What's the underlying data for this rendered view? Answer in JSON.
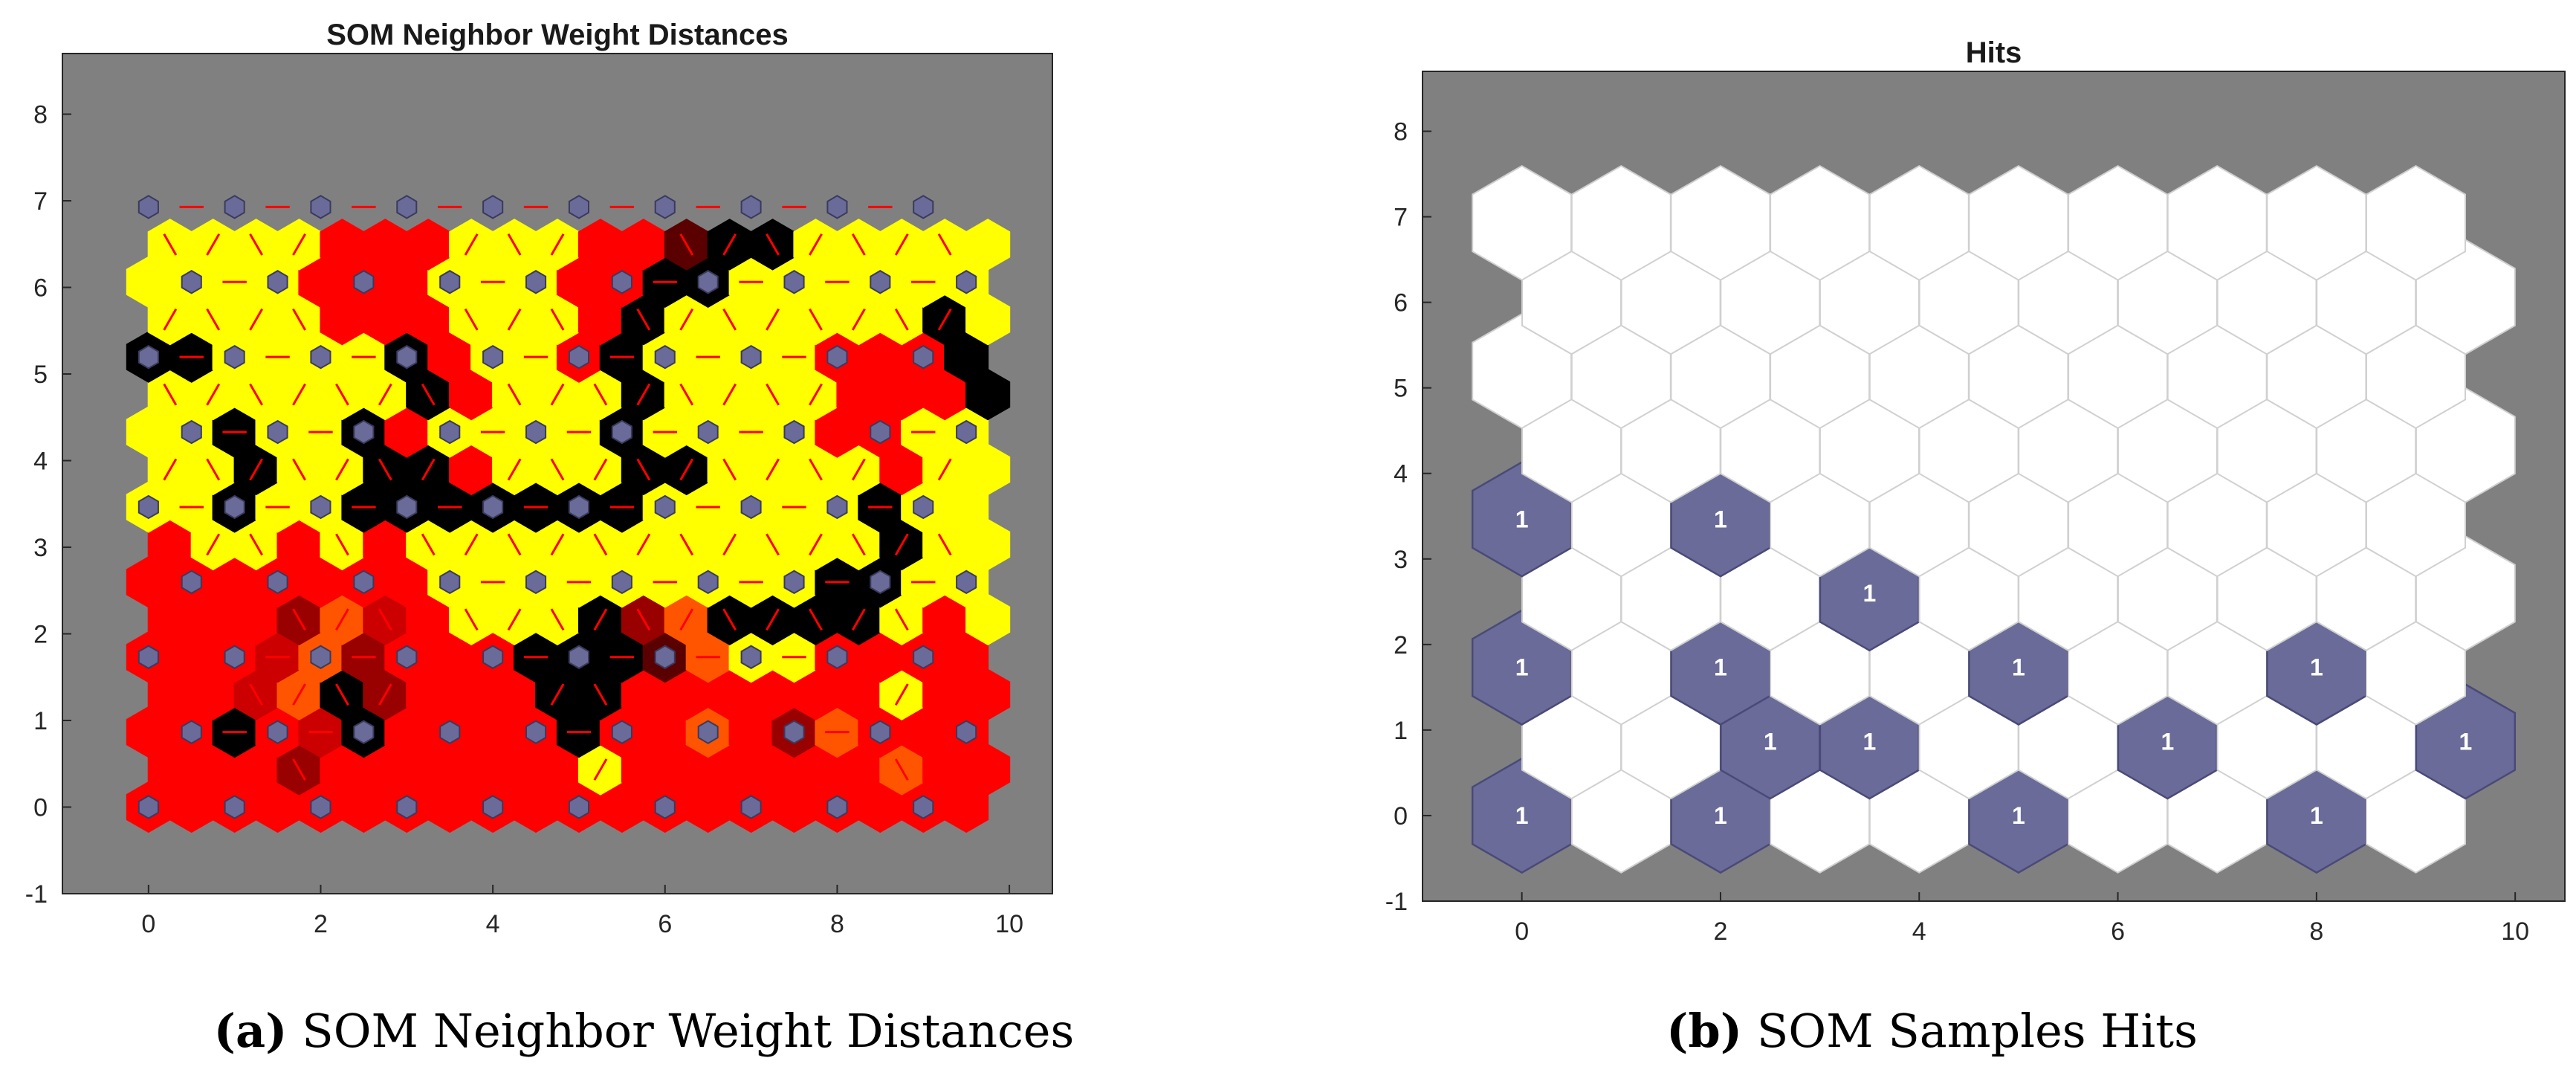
{
  "chart_data": [
    {
      "type": "heatmap",
      "title": "SOM Neighbor Weight Distances",
      "caption_label": "(a)",
      "caption_text": "SOM Neighbor Weight Distances",
      "xlim": [
        -1,
        10.5
      ],
      "ylim": [
        -1,
        8.7
      ],
      "xticks": [
        "0",
        "2",
        "4",
        "6",
        "8",
        "10"
      ],
      "yticks": [
        "-1",
        "0",
        "1",
        "2",
        "3",
        "4",
        "5",
        "6",
        "7",
        "8"
      ],
      "grid": false,
      "background_color": "#808080",
      "neuron_color": "#6b6b9a",
      "connection_line_color": "#ff0000",
      "color_scale": [
        "#ffff00",
        "#ff0000",
        "#ff5500",
        "#cc0000",
        "#990000",
        "#5a0000",
        "#000000"
      ],
      "note": "hexagonal topology 10x9; darker colors = larger distances",
      "neuron_rows": 9,
      "neuron_cols": 10,
      "distance_levels": [
        [
          1,
          1,
          1,
          1,
          1,
          1,
          1,
          1,
          1,
          1,
          1,
          1,
          1,
          1,
          1,
          1,
          1,
          1,
          1,
          1
        ],
        [
          1,
          1,
          1,
          4,
          1,
          1,
          1,
          1,
          1,
          1,
          0,
          1,
          1,
          1,
          1,
          1,
          1,
          2,
          1,
          1
        ],
        [
          1,
          1,
          6,
          1,
          3,
          6,
          1,
          1,
          1,
          1,
          6,
          1,
          1,
          2,
          1,
          4,
          2,
          1,
          1,
          1
        ],
        [
          1,
          1,
          3,
          2,
          6,
          4,
          1,
          1,
          1,
          6,
          6,
          1,
          1,
          1,
          1,
          1,
          1,
          0,
          1,
          1
        ],
        [
          1,
          1,
          1,
          3,
          2,
          4,
          1,
          1,
          1,
          6,
          6,
          6,
          5,
          2,
          0,
          0,
          1,
          1,
          1,
          1
        ],
        [
          1,
          1,
          1,
          4,
          2,
          3,
          1,
          0,
          0,
          0,
          6,
          4,
          2,
          6,
          6,
          6,
          6,
          0,
          1,
          0
        ],
        [
          1,
          1,
          1,
          1,
          1,
          1,
          1,
          0,
          0,
          0,
          0,
          0,
          0,
          0,
          0,
          0,
          6,
          6,
          0,
          0
        ],
        [
          1,
          0,
          0,
          1,
          0,
          1,
          0,
          0,
          0,
          0,
          0,
          0,
          0,
          0,
          0,
          0,
          0,
          6,
          0,
          0
        ],
        [
          0,
          0,
          6,
          0,
          0,
          6,
          6,
          6,
          6,
          6,
          6,
          6,
          0,
          0,
          0,
          0,
          0,
          6,
          0,
          0
        ],
        [
          0,
          0,
          6,
          0,
          0,
          6,
          6,
          1,
          0,
          0,
          0,
          6,
          6,
          0,
          0,
          0,
          0,
          1,
          0,
          0
        ],
        [
          0,
          0,
          6,
          0,
          0,
          6,
          1,
          0,
          0,
          0,
          0,
          6,
          0,
          0,
          0,
          0,
          1,
          1,
          0,
          0
        ],
        [
          0,
          0,
          0,
          0,
          0,
          0,
          6,
          1,
          0,
          0,
          0,
          6,
          0,
          0,
          0,
          0,
          1,
          1,
          1,
          6
        ],
        [
          6,
          6,
          0,
          0,
          0,
          0,
          6,
          1,
          0,
          0,
          1,
          6,
          0,
          0,
          0,
          0,
          1,
          1,
          1,
          6
        ],
        [
          0,
          0,
          0,
          0,
          1,
          1,
          1,
          0,
          0,
          0,
          1,
          6,
          0,
          0,
          0,
          0,
          0,
          0,
          6,
          0
        ],
        [
          0,
          0,
          0,
          0,
          1,
          1,
          1,
          0,
          0,
          0,
          1,
          1,
          6,
          6,
          0,
          0,
          0,
          0,
          0,
          0
        ],
        [
          0,
          0,
          0,
          0,
          1,
          1,
          1,
          0,
          0,
          0,
          1,
          1,
          5,
          6,
          6,
          0,
          0,
          0,
          0,
          0
        ]
      ]
    },
    {
      "type": "heatmap",
      "title": "Hits",
      "caption_label": "(b)",
      "caption_text": "SOM Samples Hits",
      "xlim": [
        -1,
        10.5
      ],
      "ylim": [
        -1,
        8.7
      ],
      "xticks": [
        "0",
        "2",
        "4",
        "6",
        "8",
        "10"
      ],
      "yticks": [
        "-1",
        "0",
        "1",
        "2",
        "3",
        "4",
        "5",
        "6",
        "7",
        "8"
      ],
      "grid": false,
      "background_color": "#808080",
      "empty_cell_color": "#ffffff",
      "hit_cell_color": "#6b6b9a",
      "neuron_rows": 9,
      "neuron_cols": 10,
      "hits": [
        {
          "row": 0,
          "col": 0,
          "count": "1"
        },
        {
          "row": 0,
          "col": 2,
          "count": "1"
        },
        {
          "row": 0,
          "col": 5,
          "count": "1"
        },
        {
          "row": 0,
          "col": 8,
          "count": "1"
        },
        {
          "row": 1,
          "col": 2,
          "count": "1"
        },
        {
          "row": 1,
          "col": 3,
          "count": "1"
        },
        {
          "row": 1,
          "col": 6,
          "count": "1"
        },
        {
          "row": 1,
          "col": 9,
          "count": "1"
        },
        {
          "row": 2,
          "col": 0,
          "count": "1"
        },
        {
          "row": 2,
          "col": 2,
          "count": "1"
        },
        {
          "row": 2,
          "col": 5,
          "count": "1"
        },
        {
          "row": 2,
          "col": 8,
          "count": "1"
        },
        {
          "row": 3,
          "col": 3,
          "count": "1"
        },
        {
          "row": 4,
          "col": 0,
          "count": "1"
        },
        {
          "row": 4,
          "col": 2,
          "count": "1"
        }
      ]
    }
  ]
}
